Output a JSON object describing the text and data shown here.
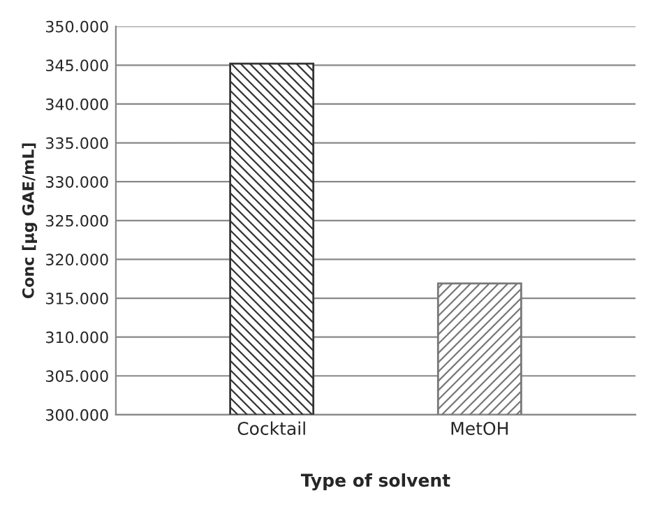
{
  "chart_data": {
    "type": "bar",
    "xlabel": "Type of solvent",
    "ylabel": "Conc [µg GAE/mL]",
    "categories": [
      "Cocktail",
      "MetOH"
    ],
    "values": [
      345.2,
      316.9
    ],
    "colors": [
      "#333333",
      "#777777"
    ],
    "ylim": [
      300,
      350
    ],
    "yticks": [
      {
        "value": 300,
        "label": "300.000"
      },
      {
        "value": 305,
        "label": "305.000"
      },
      {
        "value": 310,
        "label": "310.000"
      },
      {
        "value": 315,
        "label": "315.000"
      },
      {
        "value": 320,
        "label": "320.000"
      },
      {
        "value": 325,
        "label": "325.000"
      },
      {
        "value": 330,
        "label": "330.000"
      },
      {
        "value": 335,
        "label": "335.000"
      },
      {
        "value": 340,
        "label": "340.000"
      },
      {
        "value": 345,
        "label": "345.000"
      },
      {
        "value": 350,
        "label": "350.000"
      }
    ],
    "grid": "y",
    "legend": false
  }
}
